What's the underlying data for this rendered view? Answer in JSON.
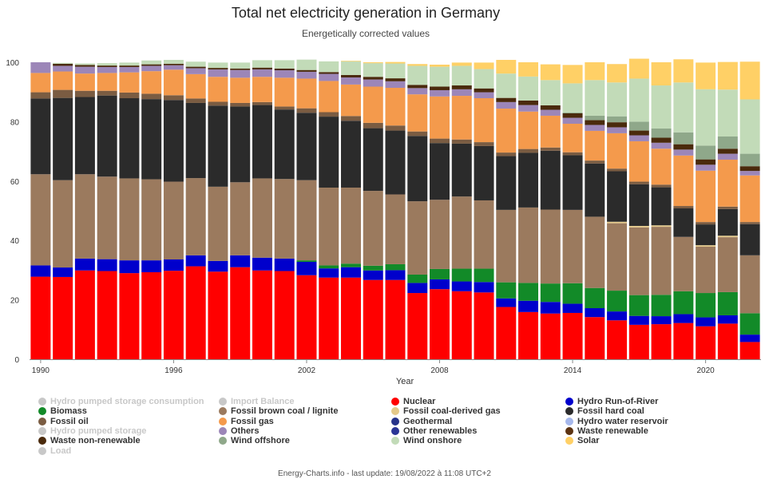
{
  "header": {
    "title": "Total net electricity generation in Germany",
    "subtitle": "Energetically corrected values"
  },
  "footer": {
    "text": "Energy-Charts.info - last update: 19/08/2022 à 11:08 UTC+2"
  },
  "legend": {
    "items": [
      {
        "label": "Hydro pumped storage consumption",
        "color": "#c8c8c8",
        "hidden": true
      },
      {
        "label": "Import Balance",
        "color": "#c8c8c8",
        "hidden": true
      },
      {
        "label": "Nuclear",
        "color": "#ff0000",
        "hidden": false
      },
      {
        "label": "Hydro Run-of-River",
        "color": "#0000cc",
        "hidden": false
      },
      {
        "label": "Biomass",
        "color": "#128a28",
        "hidden": false
      },
      {
        "label": "Fossil brown coal / lignite",
        "color": "#9b7a5e",
        "hidden": false
      },
      {
        "label": "Fossil coal-derived gas",
        "color": "#e4c98a",
        "hidden": false
      },
      {
        "label": "Fossil hard coal",
        "color": "#2b2b2b",
        "hidden": false
      },
      {
        "label": "Fossil oil",
        "color": "#7a5c42",
        "hidden": false
      },
      {
        "label": "Fossil gas",
        "color": "#f49a4c",
        "hidden": false
      },
      {
        "label": "Geothermal",
        "color": "#26338a",
        "hidden": false
      },
      {
        "label": "Hydro water reservoir",
        "color": "#a6b8ec",
        "hidden": false
      },
      {
        "label": "Hydro pumped storage",
        "color": "#c8c8c8",
        "hidden": true
      },
      {
        "label": "Others",
        "color": "#9c86b8",
        "hidden": false
      },
      {
        "label": "Other renewables",
        "color": "#2a3596",
        "hidden": false
      },
      {
        "label": "Waste renewable",
        "color": "#5c3312",
        "hidden": false
      },
      {
        "label": "Waste non-renewable",
        "color": "#4a2a0c",
        "hidden": false
      },
      {
        "label": "Wind offshore",
        "color": "#8fa88a",
        "hidden": false
      },
      {
        "label": "Wind onshore",
        "color": "#c2dbb8",
        "hidden": false
      },
      {
        "label": "Solar",
        "color": "#ffd066",
        "hidden": false
      },
      {
        "label": "Load",
        "color": "#c8c8c8",
        "hidden": true
      }
    ]
  },
  "chart_data": {
    "type": "bar",
    "stacked": true,
    "title": "Total net electricity generation in Germany",
    "subtitle": "Energetically corrected values",
    "xlabel": "Year",
    "ylabel": "",
    "ylim": [
      0,
      100
    ],
    "yticks": [
      0,
      20,
      40,
      60,
      80,
      100
    ],
    "xticks": [
      "1990",
      "1996",
      "2002",
      "2008",
      "2014",
      "2020"
    ],
    "grid": false,
    "categories": [
      "1990",
      "1991",
      "1992",
      "1993",
      "1994",
      "1995",
      "1996",
      "1997",
      "1998",
      "1999",
      "2000",
      "2001",
      "2002",
      "2003",
      "2004",
      "2005",
      "2006",
      "2007",
      "2008",
      "2009",
      "2010",
      "2011",
      "2012",
      "2013",
      "2014",
      "2015",
      "2016",
      "2017",
      "2018",
      "2019",
      "2020",
      "2021",
      "2022"
    ],
    "series": [
      {
        "name": "Nuclear",
        "color": "#ff0000",
        "values": [
          27.8,
          27.7,
          29.9,
          29.7,
          29.0,
          29.3,
          29.8,
          31.3,
          29.5,
          31.0,
          29.9,
          29.7,
          28.3,
          27.5,
          27.5,
          26.7,
          26.7,
          22.3,
          23.6,
          22.9,
          22.5,
          17.6,
          15.9,
          15.4,
          15.6,
          14.2,
          13.1,
          11.6,
          11.8,
          12.2,
          11.1,
          12.0,
          5.8
        ]
      },
      {
        "name": "Hydro Run-of-River",
        "color": "#0000cc",
        "values": [
          3.8,
          3.2,
          4.0,
          4.0,
          4.3,
          4.0,
          3.8,
          3.7,
          3.6,
          4.0,
          4.3,
          4.2,
          4.5,
          3.1,
          3.5,
          3.2,
          3.3,
          3.4,
          3.3,
          3.3,
          3.5,
          2.9,
          3.8,
          3.9,
          3.1,
          3.0,
          3.0,
          3.0,
          2.7,
          3.0,
          3.0,
          2.8,
          2.5
        ]
      },
      {
        "name": "Biomass",
        "color": "#128a28",
        "values": [
          0,
          0,
          0,
          0,
          0,
          0,
          0,
          0,
          0,
          0,
          0,
          0,
          0.5,
          1.0,
          1.2,
          1.6,
          2.0,
          2.8,
          3.5,
          4.3,
          4.5,
          5.4,
          6.0,
          6.2,
          6.9,
          6.8,
          7.0,
          7.0,
          7.2,
          7.7,
          8.2,
          7.8,
          7.2
        ]
      },
      {
        "name": "Fossil brown coal / lignite",
        "color": "#9b7a5e",
        "values": [
          30.7,
          29.4,
          28.4,
          27.8,
          27.6,
          27.3,
          26.2,
          26.0,
          25.0,
          24.6,
          26.7,
          26.8,
          27.0,
          26.2,
          25.6,
          25.2,
          23.5,
          24.7,
          23.3,
          24.3,
          23.0,
          24.4,
          25.4,
          24.9,
          24.7,
          24.0,
          22.7,
          22.8,
          22.9,
          18.3,
          15.6,
          18.5,
          19.5
        ]
      },
      {
        "name": "Fossil coal-derived gas",
        "color": "#e4c98a",
        "values": [
          0,
          0,
          0,
          0,
          0,
          0,
          0,
          0,
          0,
          0,
          0,
          0,
          0,
          0,
          0,
          0,
          0,
          0,
          0,
          0,
          0,
          0,
          0,
          0,
          0,
          0,
          0.5,
          0.5,
          0.5,
          0,
          0.5,
          0.5,
          0
        ]
      },
      {
        "name": "Fossil hard coal",
        "color": "#2b2b2b",
        "values": [
          25.5,
          27.7,
          26.0,
          27.3,
          27.0,
          27.0,
          27.5,
          25.3,
          27.3,
          25.5,
          24.7,
          23.4,
          22.7,
          23.9,
          22.5,
          21.1,
          21.5,
          22.0,
          19.1,
          17.8,
          18.3,
          18.1,
          18.4,
          19.8,
          18.4,
          17.9,
          17.0,
          14.0,
          12.8,
          9.6,
          7.0,
          9.0,
          10.5
        ]
      },
      {
        "name": "Fossil oil",
        "color": "#7a5c42",
        "values": [
          2.1,
          2.7,
          2.1,
          1.6,
          1.9,
          1.8,
          1.6,
          1.5,
          1.3,
          1.2,
          1.0,
          1.0,
          1.5,
          1.5,
          1.6,
          1.8,
          1.7,
          1.5,
          1.5,
          1.4,
          1.3,
          1.2,
          1.3,
          1.1,
          1.0,
          1.0,
          0.9,
          0.9,
          0.9,
          0.8,
          0.8,
          0.8,
          0.7
        ]
      },
      {
        "name": "Fossil gas",
        "color": "#f49a4c",
        "values": [
          6.5,
          6.2,
          5.8,
          6.0,
          6.8,
          7.6,
          8.6,
          8.2,
          8.4,
          8.5,
          8.5,
          9.7,
          10.0,
          10.5,
          10.6,
          12.2,
          12.7,
          12.5,
          14.2,
          14.7,
          14.8,
          14.8,
          12.6,
          10.7,
          9.6,
          10.0,
          11.9,
          13.6,
          12.1,
          17.0,
          17.3,
          15.8,
          15.7
        ]
      },
      {
        "name": "Others",
        "color": "#9c86b8",
        "values": [
          3.6,
          1.9,
          2.3,
          2.0,
          1.8,
          1.8,
          1.5,
          2.0,
          2.5,
          2.6,
          2.5,
          2.5,
          2.3,
          2.4,
          2.4,
          2.4,
          2.2,
          2.1,
          2.1,
          2.2,
          2.0,
          2.2,
          2.2,
          2.0,
          2.0,
          2.0,
          2.0,
          2.0,
          2.0,
          2.0,
          2.0,
          2.0,
          1.5
        ]
      },
      {
        "name": "Waste non-renewable",
        "color": "#4a2a0c",
        "values": [
          0,
          0.7,
          0.6,
          0.5,
          0.5,
          0.5,
          0.5,
          0.5,
          0.5,
          0.5,
          0.6,
          0.6,
          0.6,
          0.6,
          0.8,
          0.9,
          1.0,
          1.1,
          1.2,
          1.3,
          1.3,
          1.4,
          1.5,
          1.5,
          1.5,
          1.6,
          1.7,
          1.6,
          1.7,
          1.8,
          1.8,
          1.7,
          1.6
        ]
      },
      {
        "name": "Wind offshore",
        "color": "#8fa88a",
        "values": [
          0,
          0,
          0,
          0,
          0,
          0,
          0,
          0,
          0,
          0,
          0,
          0,
          0,
          0,
          0,
          0,
          0,
          0,
          0,
          0,
          0,
          0,
          0,
          0,
          0.3,
          1.5,
          2.0,
          3.0,
          3.1,
          4.0,
          4.6,
          4.1,
          4.2
        ]
      },
      {
        "name": "Wind onshore",
        "color": "#c2dbb8",
        "values": [
          0,
          0.3,
          0.5,
          0.8,
          1.0,
          1.3,
          1.3,
          1.7,
          1.8,
          2.0,
          2.5,
          2.8,
          3.5,
          3.6,
          4.6,
          4.6,
          5.0,
          6.4,
          6.7,
          6.6,
          6.5,
          8.2,
          8.1,
          8.5,
          9.8,
          12.0,
          11.4,
          14.5,
          14.5,
          16.8,
          19.0,
          15.8,
          18.3
        ]
      },
      {
        "name": "Solar",
        "color": "#ffd066",
        "values": [
          0,
          0,
          0,
          0,
          0,
          0,
          0,
          0,
          0,
          0,
          0,
          0,
          0,
          0,
          0.2,
          0.3,
          0.5,
          0.6,
          0.7,
          1.1,
          2.2,
          4.6,
          4.8,
          5.3,
          6.2,
          6.0,
          6.2,
          6.7,
          7.8,
          7.8,
          9.0,
          9.3,
          12.7
        ]
      }
    ]
  }
}
